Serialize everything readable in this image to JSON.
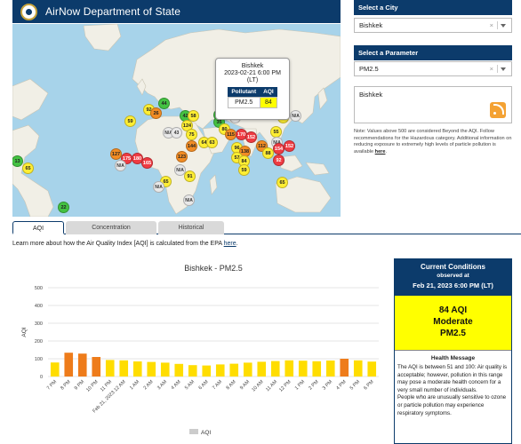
{
  "header": {
    "title": "AirNow Department of State"
  },
  "map": {
    "popup": {
      "city": "Bishkek",
      "datetime": "2023-02-21 6:00 PM",
      "tz": "(LT)",
      "col_pollutant": "Pollutant",
      "col_aqi": "AQI",
      "pollutant": "PM2.5",
      "aqi": "84"
    },
    "markers": [
      {
        "v": "44",
        "c": "green"
      },
      {
        "v": "92",
        "c": "yellow"
      },
      {
        "v": "26",
        "c": "green"
      },
      {
        "v": "59",
        "c": "yellow"
      },
      {
        "v": "42",
        "c": "green"
      },
      {
        "v": "58",
        "c": "yellow"
      },
      {
        "v": "44",
        "c": "green"
      },
      {
        "v": "35",
        "c": "green"
      },
      {
        "v": "196",
        "c": "red"
      },
      {
        "v": "N/A",
        "c": "na"
      },
      {
        "v": "88",
        "c": "yellow"
      },
      {
        "v": "N/A",
        "c": "na"
      },
      {
        "v": "124",
        "c": "orange"
      },
      {
        "v": "N/A",
        "c": "na"
      },
      {
        "v": "43",
        "c": "green"
      },
      {
        "v": "75",
        "c": "yellow"
      },
      {
        "v": "80",
        "c": "yellow"
      },
      {
        "v": "64",
        "c": "yellow"
      },
      {
        "v": "63",
        "c": "yellow"
      },
      {
        "v": "115",
        "c": "orange"
      },
      {
        "v": "170",
        "c": "red"
      },
      {
        "v": "152",
        "c": "red"
      },
      {
        "v": "55",
        "c": "yellow"
      },
      {
        "v": "N/A",
        "c": "na"
      },
      {
        "v": "144",
        "c": "orange"
      },
      {
        "v": "96",
        "c": "yellow"
      },
      {
        "v": "138",
        "c": "orange"
      },
      {
        "v": "112",
        "c": "orange"
      },
      {
        "v": "154",
        "c": "red"
      },
      {
        "v": "152",
        "c": "red"
      },
      {
        "v": "88",
        "c": "yellow"
      },
      {
        "v": "57",
        "c": "yellow"
      },
      {
        "v": "84",
        "c": "yellow"
      },
      {
        "v": "59",
        "c": "yellow"
      },
      {
        "v": "92",
        "c": "yellow"
      },
      {
        "v": "127",
        "c": "orange"
      },
      {
        "v": "175",
        "c": "red"
      },
      {
        "v": "180",
        "c": "red"
      },
      {
        "v": "N/A",
        "c": "na"
      },
      {
        "v": "165",
        "c": "red"
      },
      {
        "v": "123",
        "c": "orange"
      },
      {
        "v": "N/A",
        "c": "na"
      },
      {
        "v": "91",
        "c": "yellow"
      },
      {
        "v": "65",
        "c": "yellow"
      },
      {
        "v": "N/A",
        "c": "na"
      },
      {
        "v": "65",
        "c": "yellow"
      },
      {
        "v": "13",
        "c": "green"
      },
      {
        "v": "22",
        "c": "green"
      },
      {
        "v": "N/A",
        "c": "na"
      }
    ]
  },
  "right_panel": {
    "city_label": "Select a City",
    "city_value": "Bishkek",
    "param_label": "Select a Parameter",
    "param_value": "PM2.5",
    "clear_symbol": "×",
    "box_title": "Bishkek",
    "note": "Note: Values above 500 are considered Beyond the AQI. Follow recommendations for the Hazardous category. Additional information on reducing exposure to extremely high levels of particle pollution is available",
    "note_link": "here",
    "note_end": "."
  },
  "tabs": [
    {
      "label": "AQI",
      "active": true
    },
    {
      "label": "Concentration",
      "active": false
    },
    {
      "label": "Historical",
      "active": false
    }
  ],
  "learn": {
    "text": "Learn more about how the Air Quality Index [AQI] is calculated from the EPA",
    "link": "here",
    "end": "."
  },
  "chart_data": {
    "type": "bar",
    "title": "Bishkek - PM2.5",
    "xlabel": "",
    "ylabel": "AQI",
    "ylim": [
      0,
      500
    ],
    "yticks": [
      0,
      100,
      200,
      300,
      400,
      500
    ],
    "grid": true,
    "legend": "bottom",
    "categories": [
      "7 PM",
      "8 PM",
      "9 PM",
      "10 PM",
      "11 PM",
      "Feb 21, 2023 12 AM",
      "1 AM",
      "2 AM",
      "3 AM",
      "4 AM",
      "5 AM",
      "6 AM",
      "7 AM",
      "8 AM",
      "9 AM",
      "10 AM",
      "11 AM",
      "12 PM",
      "1 PM",
      "2 PM",
      "3 PM",
      "4 PM",
      "5 PM",
      "6 PM"
    ],
    "series": [
      {
        "name": "AQI",
        "values": [
          79,
          134,
          129,
          110,
          93,
          91,
          85,
          82,
          78,
          71,
          64,
          62,
          68,
          72,
          78,
          83,
          87,
          91,
          89,
          86,
          90,
          100,
          91,
          84
        ],
        "colors": [
          "#ffdd00",
          "#ee7c1b",
          "#ee7c1b",
          "#ee7c1b",
          "#ffdd00",
          "#ffdd00",
          "#ffdd00",
          "#ffdd00",
          "#ffdd00",
          "#ffdd00",
          "#ffdd00",
          "#ffdd00",
          "#ffdd00",
          "#ffdd00",
          "#ffdd00",
          "#ffdd00",
          "#ffdd00",
          "#ffdd00",
          "#ffdd00",
          "#ffdd00",
          "#ffdd00",
          "#ee7c1b",
          "#ffdd00",
          "#ffdd00"
        ]
      }
    ]
  },
  "current": {
    "title": "Current Conditions",
    "observed": "observed at",
    "datetime": "Feb 21, 2023 6:00 PM (LT)",
    "aqi_line": "84 AQI",
    "category": "Moderate",
    "pollutant": "PM2.5",
    "hm_title": "Health Message",
    "hm_text_1": "The AQI is between 51 and 100: Air quality is acceptable; however, pollution in this range may pose a moderate health concern for a very small number of individuals.",
    "hm_text_2": "People who are unusually sensitive to ozone or particle pollution may experience respiratory symptoms."
  },
  "colors": {
    "navy": "#0c3b6b",
    "moderate": "#ffff00",
    "usg": "#ee7c1b"
  }
}
